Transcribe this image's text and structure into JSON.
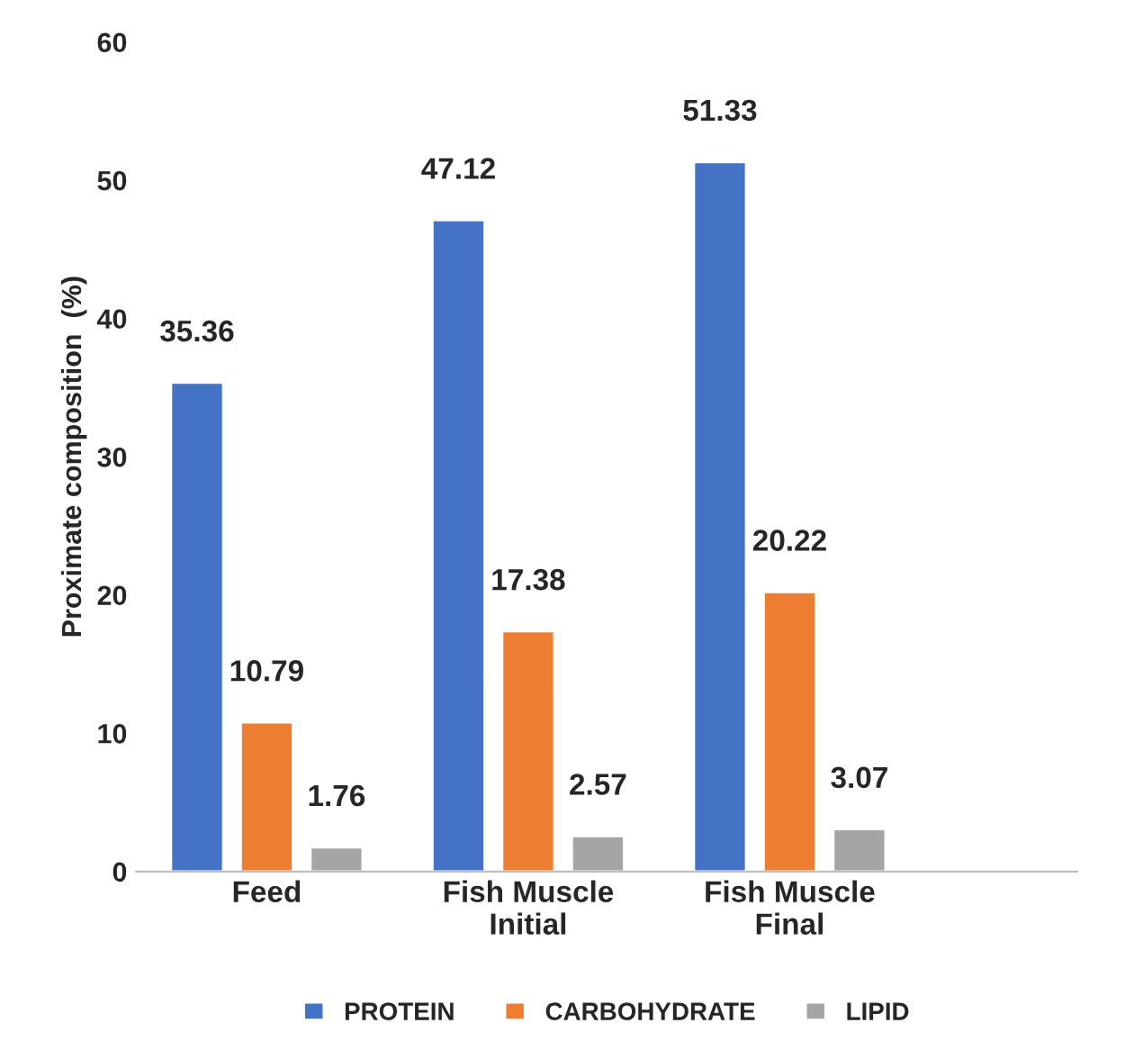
{
  "chart_data": {
    "type": "bar",
    "ylabel": "Proximate composition  (%)",
    "categories": [
      "Feed",
      "Fish Muscle\nInitial",
      "Fish Muscle\nFinal"
    ],
    "series": [
      {
        "name": "PROTEIN",
        "color": "#4472c4",
        "values": [
          35.36,
          47.12,
          51.33
        ]
      },
      {
        "name": "CARBOHYDRATE",
        "color": "#ed7d31",
        "values": [
          10.79,
          17.38,
          20.22
        ]
      },
      {
        "name": "LIPID",
        "color": "#a5a5a5",
        "values": [
          1.76,
          2.57,
          3.07
        ]
      }
    ],
    "ylim": [
      0,
      60
    ],
    "yticks": [
      0,
      10,
      20,
      30,
      40,
      50,
      60
    ],
    "data_labels": true,
    "grid": false,
    "legend": "bottom"
  }
}
